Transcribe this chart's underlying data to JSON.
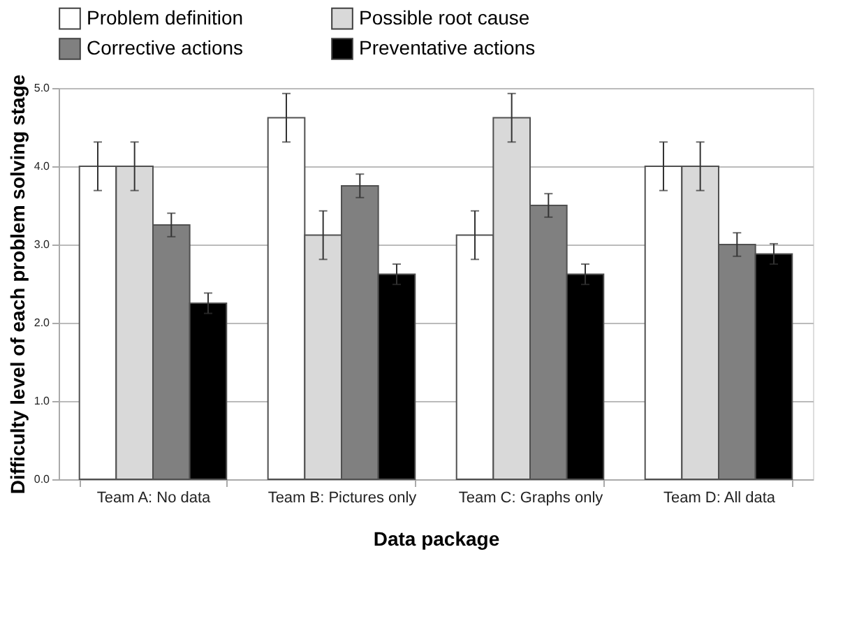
{
  "chart_data": {
    "type": "bar",
    "xlabel": "Data package",
    "ylabel": "Difficulty level of each problem solving stage",
    "categories": [
      "Team A: No data",
      "Team B: Pictures only",
      "Team C: Graphs only",
      "Team D: All data"
    ],
    "series": [
      {
        "name": "Problem definition",
        "color": "#ffffff",
        "values": [
          4.0,
          4.62,
          3.12,
          4.0
        ],
        "errors": [
          0.31,
          0.31,
          0.31,
          0.31
        ]
      },
      {
        "name": "Possible root cause",
        "color": "#d9d9d9",
        "values": [
          4.0,
          3.12,
          4.62,
          4.0
        ],
        "errors": [
          0.31,
          0.31,
          0.31,
          0.31
        ]
      },
      {
        "name": "Corrective actions",
        "color": "#808080",
        "values": [
          3.25,
          3.75,
          3.5,
          3.0
        ],
        "errors": [
          0.15,
          0.15,
          0.15,
          0.15
        ]
      },
      {
        "name": "Preventative actions",
        "color": "#000000",
        "values": [
          2.25,
          2.62,
          2.62,
          2.88
        ],
        "errors": [
          0.13,
          0.13,
          0.13,
          0.13
        ]
      }
    ],
    "ylim": [
      0,
      5
    ],
    "yticks": [
      {
        "value": 0,
        "label": "0.0"
      },
      {
        "value": 1,
        "label": "1.0"
      },
      {
        "value": 2,
        "label": "2.0"
      },
      {
        "value": 3,
        "label": "3.0"
      },
      {
        "value": 4,
        "label": "4.0"
      },
      {
        "value": 5,
        "label": "5.0"
      }
    ],
    "grid": "y",
    "legend": "top"
  }
}
